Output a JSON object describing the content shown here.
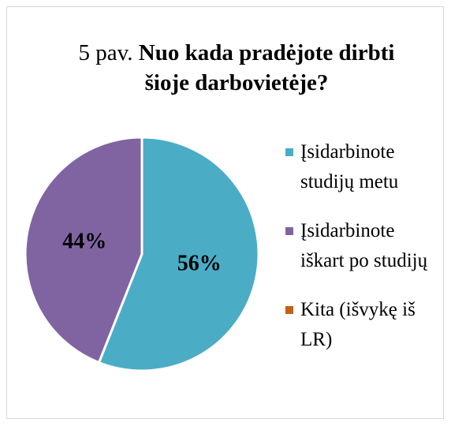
{
  "chart_data": {
    "type": "pie",
    "title": [
      "5 pav.",
      "Nuo kada pradėjote dirbti šioje darbovietėje?"
    ],
    "categories": [
      "Įsidarbinote studijų metu",
      "Įsidarbinote iškart po studijų",
      "Kita (išvykę iš LR)"
    ],
    "values": [
      56,
      44,
      0
    ],
    "value_labels": [
      "56%",
      "44%",
      null
    ],
    "colors": [
      "#4bacc6",
      "#8064a2",
      "#c0621b"
    ],
    "legend": "right"
  }
}
